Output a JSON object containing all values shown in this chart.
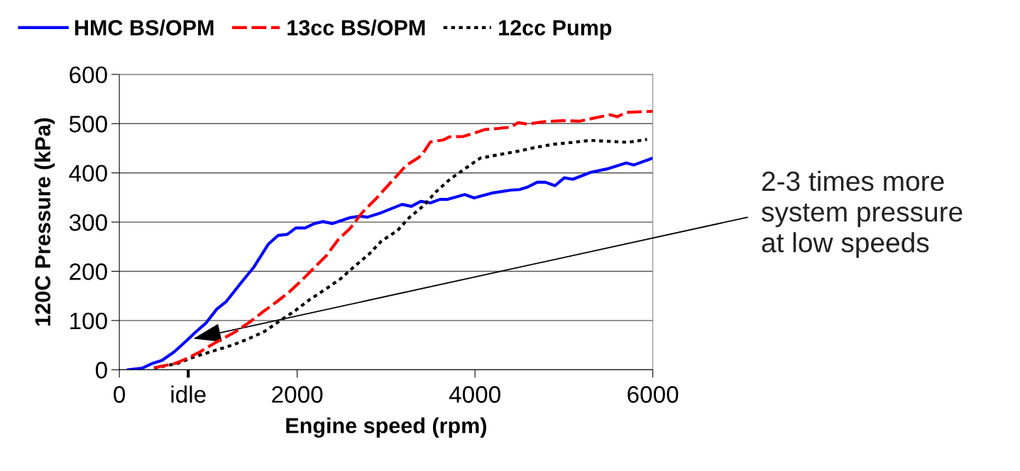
{
  "chart_data": {
    "type": "line",
    "xlabel": "Engine speed (rpm)",
    "ylabel": "120C Pressure (kPa)",
    "xlim": [
      0,
      6000
    ],
    "xticks": [
      0,
      {
        "value": 775,
        "label": "idle"
      },
      2000,
      4000,
      6000
    ],
    "ylim": [
      0,
      600
    ],
    "yticks": [
      0,
      100,
      200,
      300,
      400,
      500,
      600
    ],
    "grid": "y",
    "legend": "top left",
    "marker": "none",
    "series": [
      {
        "name": "HMC BS/OPM",
        "color": "#0000ff",
        "line_style": "solid",
        "x": [
          100,
          255,
          375,
          480,
          615,
          750,
          855,
          975,
          1095,
          1200,
          1370,
          1515,
          1675,
          1787,
          1890,
          1985,
          2090,
          2195,
          2290,
          2395,
          2595,
          2705,
          2790,
          2945,
          3180,
          3285,
          3390,
          3500,
          3605,
          3685,
          3885,
          3990,
          4190,
          4405,
          4500,
          4590,
          4700,
          4790,
          4900,
          5005,
          5100,
          5300,
          5485,
          5700,
          5785,
          6000
        ],
        "values": [
          0,
          3,
          13,
          19,
          36,
          58,
          76,
          95,
          123,
          138,
          177,
          209,
          255,
          273,
          275,
          288,
          288,
          297,
          301,
          297,
          309,
          312,
          310,
          319,
          336,
          332,
          342,
          339,
          346,
          346,
          356,
          349,
          359,
          365,
          366,
          371,
          381,
          381,
          374,
          390,
          387,
          401,
          408,
          420,
          416,
          430
        ]
      },
      {
        "name": "13cc BS/OPM",
        "color": "#ff0000",
        "line_style": "dashed",
        "x": [
          390,
          630,
          760,
          895,
          1080,
          1295,
          1475,
          1610,
          1770,
          1905,
          2065,
          2195,
          2330,
          2465,
          2595,
          2730,
          2890,
          3070,
          3225,
          3365,
          3405,
          3500,
          3645,
          3710,
          3870,
          4030,
          4110,
          4245,
          4405,
          4485,
          4590,
          4780,
          4990,
          5180,
          5305,
          5520,
          5600,
          5705,
          6000
        ],
        "values": [
          4,
          13,
          23,
          35,
          55,
          76,
          98,
          117,
          138,
          157,
          184,
          208,
          232,
          265,
          287,
          319,
          348,
          384,
          415,
          431,
          437,
          463,
          467,
          473,
          474,
          483,
          488,
          490,
          493,
          502,
          499,
          504,
          506,
          505,
          510,
          518,
          514,
          523,
          525
        ]
      },
      {
        "name": "12cc Pump",
        "color": "#000000",
        "line_style": "dotted",
        "x": [
          390,
          655,
          840,
          1055,
          1270,
          1455,
          1635,
          1795,
          1985,
          2145,
          2330,
          2490,
          2650,
          2810,
          2945,
          3130,
          3260,
          3420,
          3565,
          3725,
          3900,
          4060,
          4270,
          4485,
          4685,
          4885,
          5100,
          5300,
          5505,
          5720,
          5935
        ],
        "values": [
          3,
          13,
          26,
          38,
          50,
          63,
          78,
          98,
          121,
          143,
          165,
          185,
          211,
          235,
          261,
          283,
          309,
          333,
          362,
          388,
          410,
          430,
          437,
          444,
          452,
          458,
          462,
          466,
          464,
          462,
          468
        ]
      }
    ],
    "annotations": [
      {
        "text": "2-3 times more\nsystem pressure\nat low speeds",
        "x": 830,
        "y": 63
      }
    ]
  }
}
